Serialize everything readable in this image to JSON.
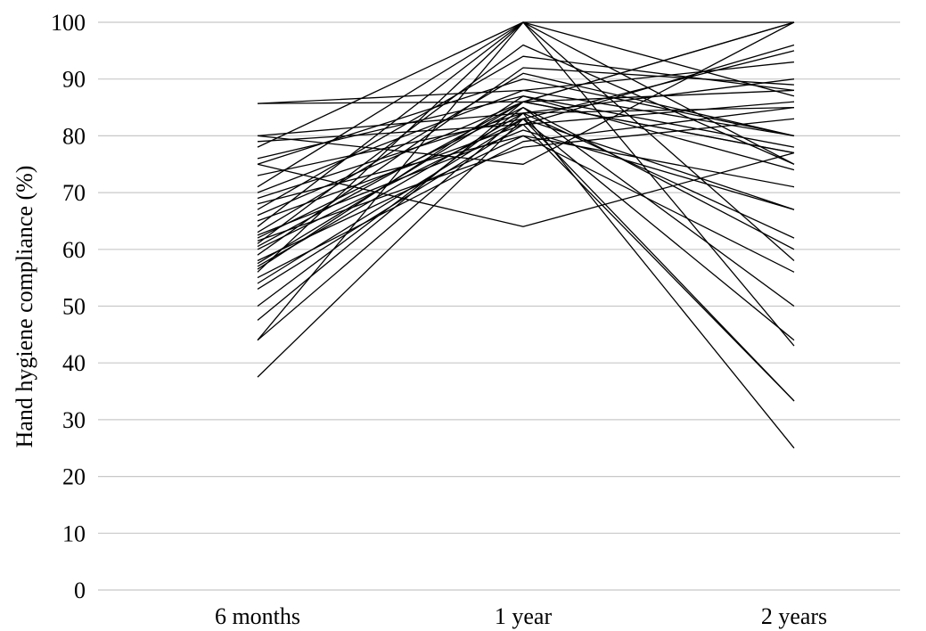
{
  "chart_data": {
    "type": "line",
    "title": "",
    "xlabel": "",
    "ylabel": "Hand hygiene compliance (%)",
    "categories": [
      "6 months",
      "1 year",
      "2 years"
    ],
    "ylim": [
      0,
      100
    ],
    "yticks": [
      "0",
      "10",
      "20",
      "30",
      "40",
      "50",
      "60",
      "70",
      "80",
      "90",
      "100"
    ],
    "grid": true,
    "legend": "none",
    "line_color": "#000000",
    "grid_color": "#c8c8c8",
    "series": [
      {
        "values": [
          85.7,
          88.0,
          80.0
        ]
      },
      {
        "values": [
          85.7,
          86.0,
          88.0
        ]
      },
      {
        "values": [
          80.0,
          75.0,
          100.0
        ]
      },
      {
        "values": [
          80.0,
          84.0,
          90.0
        ]
      },
      {
        "values": [
          79.0,
          82.0,
          86.0
        ]
      },
      {
        "values": [
          78.0,
          100.0,
          100.0
        ]
      },
      {
        "values": [
          76.0,
          87.0,
          78.0
        ]
      },
      {
        "values": [
          75.0,
          64.0,
          77.0
        ]
      },
      {
        "values": [
          75.0,
          90.0,
          80.0
        ]
      },
      {
        "values": [
          73.0,
          83.0,
          67.0
        ]
      },
      {
        "values": [
          71.0,
          100.0,
          75.0
        ]
      },
      {
        "values": [
          70.0,
          88.0,
          93.0
        ]
      },
      {
        "values": [
          69.0,
          84.0,
          85.0
        ]
      },
      {
        "values": [
          68.0,
          80.0,
          71.0
        ]
      },
      {
        "values": [
          67.0,
          94.0,
          88.0
        ]
      },
      {
        "values": [
          66.0,
          86.0,
          77.0
        ]
      },
      {
        "values": [
          65.0,
          82.0,
          96.0
        ]
      },
      {
        "values": [
          64.0,
          100.0,
          58.0
        ]
      },
      {
        "values": [
          63.0,
          91.0,
          80.0
        ]
      },
      {
        "values": [
          62.5,
          81.0,
          67.0
        ]
      },
      {
        "values": [
          62.0,
          85.0,
          60.0
        ]
      },
      {
        "values": [
          61.5,
          78.0,
          83.0
        ]
      },
      {
        "values": [
          61.0,
          96.0,
          75.0
        ]
      },
      {
        "values": [
          60.5,
          86.0,
          100.0
        ]
      },
      {
        "values": [
          60.0,
          83.0,
          44.0
        ]
      },
      {
        "values": [
          59.0,
          92.0,
          89.0
        ]
      },
      {
        "values": [
          58.0,
          80.0,
          56.0
        ]
      },
      {
        "values": [
          57.5,
          86.0,
          100.0
        ]
      },
      {
        "values": [
          57.0,
          84.0,
          62.0
        ]
      },
      {
        "values": [
          56.5,
          87.0,
          74.0
        ]
      },
      {
        "values": [
          56.0,
          100.0,
          43.0
        ]
      },
      {
        "values": [
          55.0,
          79.0,
          85.0
        ]
      },
      {
        "values": [
          54.0,
          83.0,
          95.0
        ]
      },
      {
        "values": [
          53.0,
          82.0,
          33.3
        ]
      },
      {
        "values": [
          50.0,
          85.0,
          50.0
        ]
      },
      {
        "values": [
          47.5,
          86.0,
          77.0
        ]
      },
      {
        "values": [
          44.0,
          84.0,
          25.0
        ]
      },
      {
        "values": [
          44.0,
          100.0,
          87.0
        ]
      },
      {
        "values": [
          37.5,
          83.0,
          33.3
        ]
      }
    ]
  }
}
